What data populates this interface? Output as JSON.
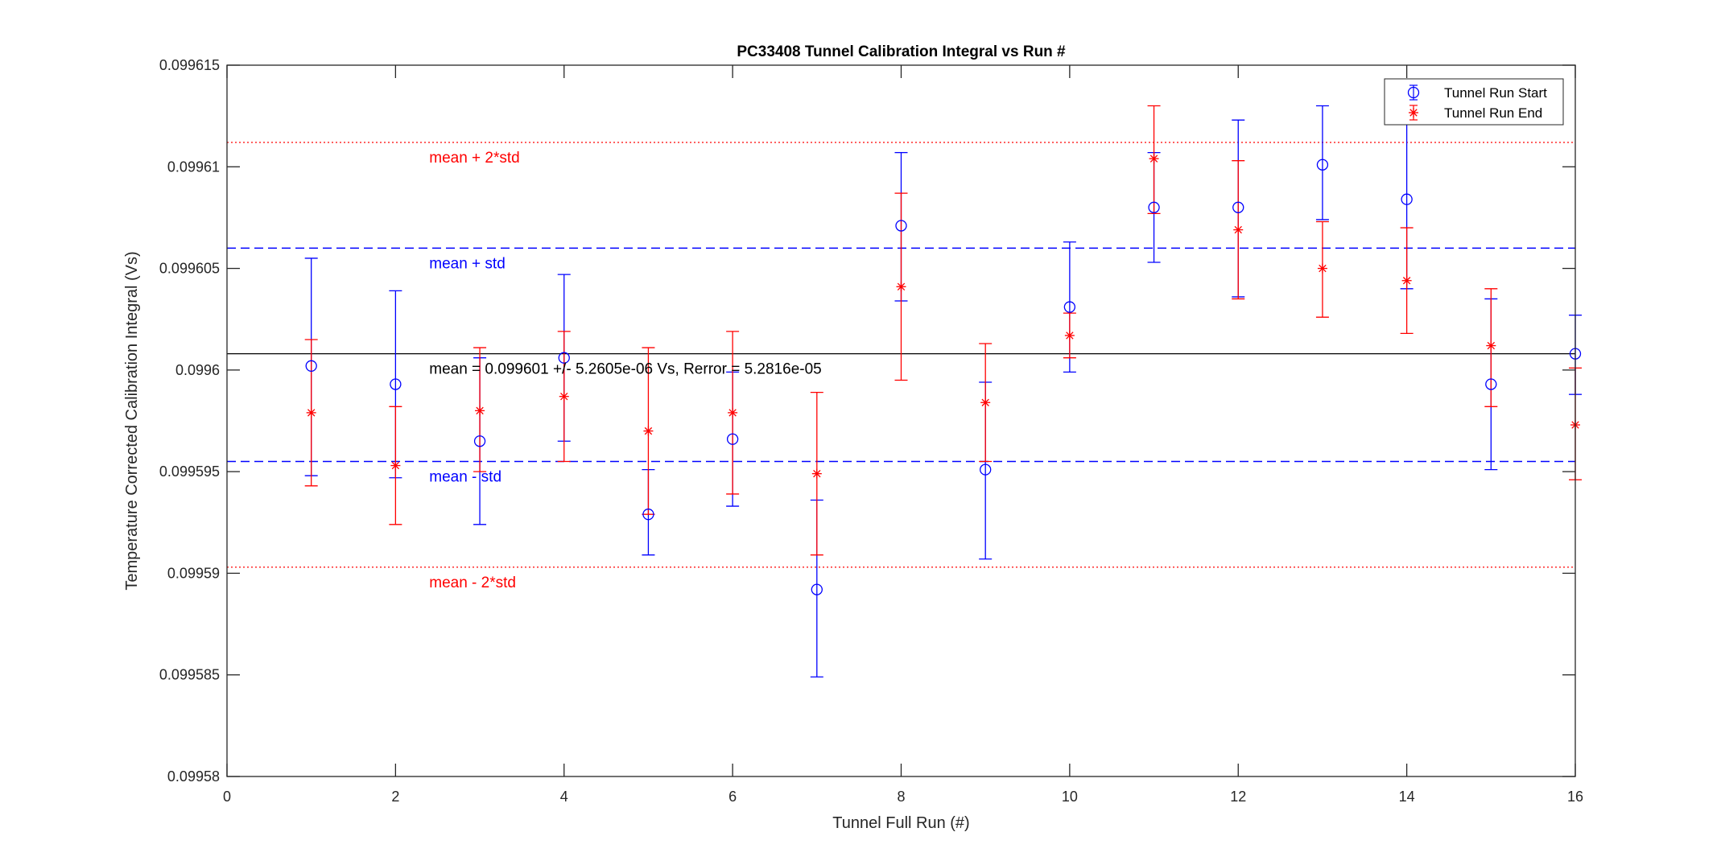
{
  "chart_data": {
    "type": "scatter",
    "title": "PC33408 Tunnel Calibration Integral vs Run #",
    "xlabel": "Tunnel Full Run (#)",
    "ylabel": "Temperature Corrected Calibration Integral (Vs)",
    "xlim": [
      0,
      16
    ],
    "ylim": [
      0.09958,
      0.099615
    ],
    "xticks": [
      0,
      2,
      4,
      6,
      8,
      10,
      12,
      14,
      16
    ],
    "xtick_labels": [
      "0",
      "2",
      "4",
      "6",
      "8",
      "10",
      "12",
      "14",
      "16"
    ],
    "yticks": [
      0.09958,
      0.099585,
      0.09959,
      0.099595,
      0.0996,
      0.099605,
      0.09961,
      0.099615
    ],
    "ytick_labels": [
      "0.09958",
      "0.099585",
      "0.09959",
      "0.099595",
      "0.0996",
      "0.099605",
      "0.09961",
      "0.099615"
    ],
    "grid": false,
    "legend": {
      "position": "top-right",
      "entries": [
        "Tunnel Run Start",
        "Tunnel Run End"
      ]
    },
    "series": [
      {
        "name": "Tunnel Run Start",
        "color": "#0000ff",
        "marker": "circle",
        "x": [
          1,
          2,
          3,
          4,
          5,
          6,
          7,
          8,
          9,
          10,
          11,
          12,
          13,
          14,
          15,
          16
        ],
        "y": [
          0.0996002,
          0.0995993,
          0.0995965,
          0.0996006,
          0.0995929,
          0.0995966,
          0.0995892,
          0.0996071,
          0.0995951,
          0.0996031,
          0.099608,
          0.099608,
          0.0996101,
          0.0996084,
          0.0995993,
          0.0996008
        ],
        "err_low": [
          0.0995948,
          0.0995947,
          0.0995924,
          0.0995965,
          0.0995909,
          0.0995933,
          0.0995849,
          0.0996034,
          0.0995907,
          0.0995999,
          0.0996053,
          0.0996036,
          0.0996074,
          0.099604,
          0.0995951,
          0.0995988
        ],
        "err_high": [
          0.0996055,
          0.0996039,
          0.0996006,
          0.0996047,
          0.0995951,
          0.0995999,
          0.0995936,
          0.0996107,
          0.0995994,
          0.0996063,
          0.0996107,
          0.0996123,
          0.099613,
          0.0996128,
          0.0996035,
          0.0996027
        ]
      },
      {
        "name": "Tunnel Run End",
        "color": "#ff0000",
        "marker": "asterisk",
        "x": [
          1,
          2,
          3,
          4,
          5,
          6,
          7,
          8,
          9,
          10,
          11,
          12,
          13,
          14,
          15,
          16
        ],
        "y": [
          0.0995979,
          0.0995953,
          0.099598,
          0.0995987,
          0.099597,
          0.0995979,
          0.0995949,
          0.0996041,
          0.0995984,
          0.0996017,
          0.0996104,
          0.0996069,
          0.099605,
          0.0996044,
          0.0996012,
          0.0995973
        ],
        "err_low": [
          0.0995943,
          0.0995924,
          0.099595,
          0.0995955,
          0.0995929,
          0.0995939,
          0.0995909,
          0.0995995,
          0.0995955,
          0.0996006,
          0.0996077,
          0.0996035,
          0.0996026,
          0.0996018,
          0.0995982,
          0.0995946
        ],
        "err_high": [
          0.0996015,
          0.0995982,
          0.0996011,
          0.0996019,
          0.0996011,
          0.0996019,
          0.0995989,
          0.0996087,
          0.0996013,
          0.0996028,
          0.099613,
          0.0996103,
          0.0996073,
          0.099607,
          0.099604,
          0.0996001
        ]
      }
    ],
    "reference_lines": [
      {
        "y": 0.0996112,
        "style": "dotted",
        "color": "#ff0000",
        "label": "mean + 2*std"
      },
      {
        "y": 0.099606,
        "style": "dashed",
        "color": "#0000ff",
        "label": "mean + std"
      },
      {
        "y": 0.0996008,
        "style": "solid",
        "color": "#000000",
        "label": "mean = 0.099601 +/- 5.2605e-06 Vs, Rerror = 5.2816e-05"
      },
      {
        "y": 0.0995955,
        "style": "dashed",
        "color": "#0000ff",
        "label": "mean - std"
      },
      {
        "y": 0.0995903,
        "style": "dotted",
        "color": "#ff0000",
        "label": "mean - 2*std"
      }
    ],
    "annotation_x": 2.4
  }
}
